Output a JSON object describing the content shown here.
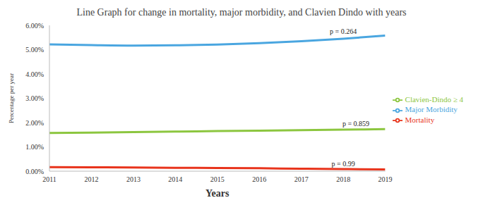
{
  "chart_data": {
    "type": "line",
    "title": "Line Graph for change in mortality, major morbidity, and Clavien Dindo with years",
    "x_label": "Years",
    "y_label": "Percentage per year",
    "x": [
      2011,
      2012,
      2013,
      2014,
      2015,
      2016,
      2017,
      2018,
      2019
    ],
    "xlim": [
      2011,
      2019
    ],
    "xticks": [
      2011,
      2012,
      2013,
      2014,
      2015,
      2016,
      2017,
      2018,
      2019
    ],
    "ylim": [
      0,
      6
    ],
    "yticks": [
      {
        "value": 0,
        "label": "0.00%"
      },
      {
        "value": 1,
        "label": "1.00%"
      },
      {
        "value": 2,
        "label": "2.00%"
      },
      {
        "value": 3,
        "label": "3.00%"
      },
      {
        "value": 4,
        "label": "4.00%"
      },
      {
        "value": 5,
        "label": "5.00%"
      },
      {
        "value": 6,
        "label": "6.00%"
      }
    ],
    "grid": false,
    "legend": "right",
    "series": [
      {
        "name": "Mortality",
        "color": "#e8341c",
        "values": [
          0.17,
          0.16,
          0.15,
          0.14,
          0.13,
          0.12,
          0.1,
          0.09,
          0.07
        ]
      },
      {
        "name": "Clavien-Dindo ≥ 4",
        "color": "#8cc63f",
        "values": [
          1.57,
          1.59,
          1.61,
          1.63,
          1.65,
          1.67,
          1.69,
          1.71,
          1.73
        ]
      },
      {
        "name": "Major Morbidity",
        "color": "#4aa6e0",
        "values": [
          5.22,
          5.19,
          5.17,
          5.18,
          5.21,
          5.27,
          5.35,
          5.45,
          5.58
        ]
      }
    ],
    "annotations": [
      {
        "text": "p = 0.264",
        "x": 2018,
        "y": 5.75
      },
      {
        "text": "p = 0.859",
        "x": 2018.3,
        "y": 1.95
      },
      {
        "text": "p = 0.99",
        "x": 2018,
        "y": 0.32
      }
    ]
  }
}
